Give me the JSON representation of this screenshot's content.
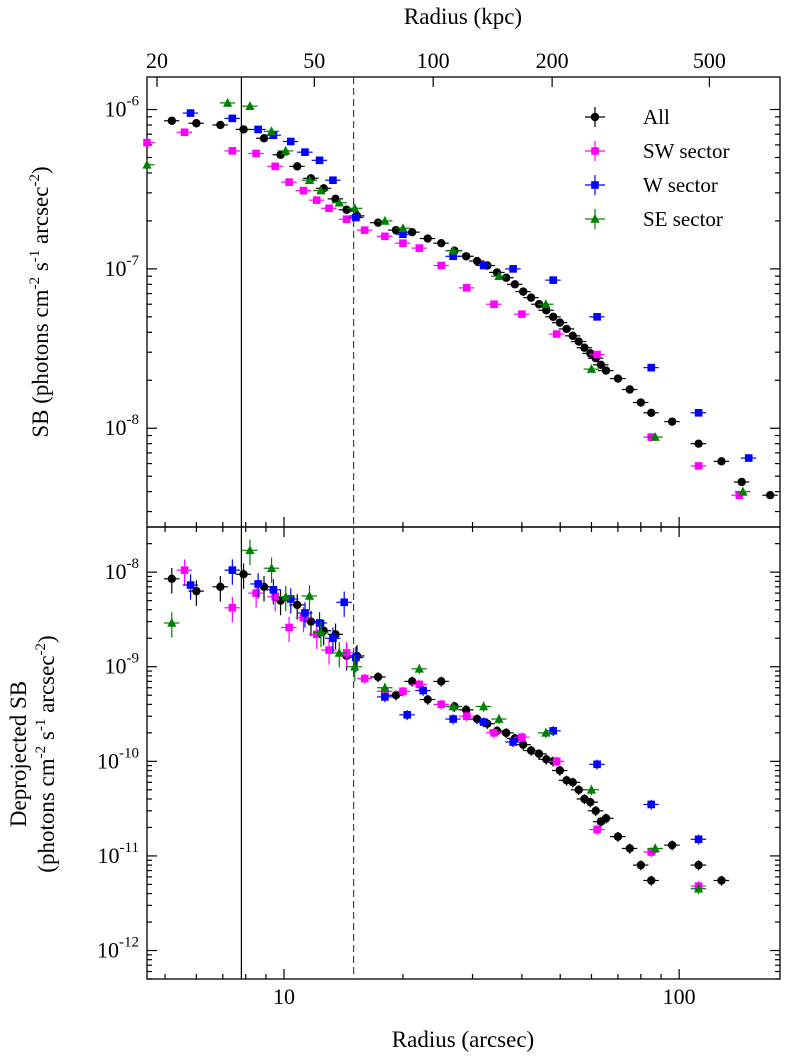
{
  "chart_data": [
    {
      "type": "scatter",
      "xscale": "log",
      "yscale": "log",
      "xlim": [
        4.5,
        180
      ],
      "ylim": [
        2.4e-09,
        1.6e-06
      ],
      "ylabel_lines": [
        "SB (photons cm",
        "-2",
        " s",
        "-1",
        " arcsec",
        "-2",
        ")"
      ],
      "top_axis_label": "Radius (kpc)",
      "top_axis_ticks": [
        "20",
        "50",
        "100",
        "200",
        "500"
      ],
      "top_axis_tick_arcsec": [
        4.77,
        11.93,
        23.85,
        47.7,
        119.3
      ],
      "vlines": [
        {
          "x": 7.8,
          "style": "solid"
        },
        {
          "x": 15.0,
          "style": "dashed"
        }
      ],
      "legend": {
        "placement": "top-right",
        "entries": [
          "All",
          "SW sector",
          "W sector",
          "SE sector"
        ]
      },
      "series": [
        {
          "name": "All",
          "color": "#000000",
          "marker": "circle",
          "x": [
            5.2,
            6.0,
            6.9,
            7.9,
            8.9,
            9.8,
            10.8,
            11.7,
            12.6,
            13.5,
            14.4,
            15.3,
            17.3,
            19.2,
            21.1,
            23.1,
            25.0,
            27.0,
            28.9,
            30.8,
            32.7,
            34.6,
            36.5,
            38.4,
            40.3,
            42.2,
            44.2,
            46.1,
            48.0,
            49.9,
            51.9,
            53.8,
            55.7,
            57.6,
            59.6,
            61.5,
            63.4,
            65.3,
            70.0,
            75.0,
            80.0,
            85.0,
            96.0,
            112.0,
            128.0,
            144.0,
            170.0
          ],
          "y": [
            8.5e-07,
            8.2e-07,
            8e-07,
            7.5e-07,
            6.6e-07,
            5.2e-07,
            4.4e-07,
            3.7e-07,
            3.2e-07,
            2.75e-07,
            2.35e-07,
            2.15e-07,
            1.95e-07,
            1.75e-07,
            1.7e-07,
            1.55e-07,
            1.45e-07,
            1.3e-07,
            1.2e-07,
            1.12e-07,
            1.05e-07,
            9.5e-08,
            8.8e-08,
            8e-08,
            7.2e-08,
            6.6e-08,
            6e-08,
            5.5e-08,
            5e-08,
            4.6e-08,
            4.2e-08,
            3.8e-08,
            3.5e-08,
            3.2e-08,
            2.95e-08,
            2.75e-08,
            2.5e-08,
            2.3e-08,
            2.05e-08,
            1.75e-08,
            1.45e-08,
            1.25e-08,
            1.1e-08,
            8e-09,
            6.2e-09,
            4.6e-09,
            3.8e-09
          ]
        },
        {
          "name": "SW sector",
          "color": "#ff00ff",
          "marker": "square",
          "x": [
            4.5,
            5.6,
            7.4,
            8.5,
            9.5,
            10.3,
            11.2,
            12.1,
            13.0,
            14.4,
            16.0,
            18.0,
            20.0,
            22.0,
            25.0,
            29.0,
            34.0,
            40.0,
            49.0,
            62.0,
            85.0,
            112.0,
            142.0
          ],
          "y": [
            6.2e-07,
            7.2e-07,
            5.5e-07,
            5.3e-07,
            4.4e-07,
            3.5e-07,
            3.1e-07,
            2.7e-07,
            2.4e-07,
            2.05e-07,
            1.75e-07,
            1.6e-07,
            1.45e-07,
            1.35e-07,
            1.05e-07,
            7.6e-08,
            6e-08,
            5.2e-08,
            3.9e-08,
            2.9e-08,
            8.8e-09,
            5.8e-09,
            3.8e-09
          ]
        },
        {
          "name": "W sector",
          "color": "#0000ff",
          "marker": "square",
          "x": [
            5.8,
            7.4,
            8.6,
            9.4,
            10.4,
            11.3,
            12.3,
            13.3,
            15.2,
            20.0,
            26.8,
            32.0,
            38.0,
            48.0,
            62.0,
            85.0,
            112.0,
            150.0
          ],
          "y": [
            9.5e-07,
            8.8e-07,
            7.5e-07,
            6.9e-07,
            6.3e-07,
            5.4e-07,
            4.8e-07,
            3.6e-07,
            2.1e-07,
            1.65e-07,
            1.2e-07,
            1.05e-07,
            1e-07,
            8.5e-08,
            5e-08,
            2.4e-08,
            1.25e-08,
            6.5e-09
          ]
        },
        {
          "name": "SE sector",
          "color": "#008000",
          "marker": "triangle",
          "x": [
            4.5,
            7.2,
            8.2,
            9.3,
            10.1,
            11.6,
            12.4,
            13.8,
            15.1,
            18.0,
            20.0,
            26.8,
            35.0,
            46.0,
            60.0,
            87.0,
            145.0
          ],
          "y": [
            4.5e-07,
            1.1e-06,
            1.05e-06,
            7.3e-07,
            5.5e-07,
            3.6e-07,
            3.1e-07,
            2.6e-07,
            2.4e-07,
            2e-07,
            1.8e-07,
            1.3e-07,
            9e-08,
            6e-08,
            2.35e-08,
            8.8e-09,
            4e-09
          ]
        }
      ]
    },
    {
      "type": "scatter",
      "xscale": "log",
      "yscale": "log",
      "xlim": [
        4.5,
        180
      ],
      "ylim": [
        5e-13,
        3e-08
      ],
      "xlabel": "Radius (arcsec)",
      "x_ticks": [
        "10",
        "100"
      ],
      "ylabel_top": "Deprojected SB",
      "ylabel_lines": [
        "(photons cm",
        "-2",
        " s",
        "-1",
        " arcsec",
        "-2",
        ")"
      ],
      "vlines": [
        {
          "x": 7.8,
          "style": "solid"
        },
        {
          "x": 15.0,
          "style": "dashed"
        }
      ],
      "series": [
        {
          "name": "All",
          "color": "#000000",
          "marker": "circle",
          "x": [
            5.2,
            6.0,
            6.9,
            7.9,
            8.9,
            9.8,
            10.8,
            11.7,
            12.6,
            13.5,
            14.4,
            15.3,
            17.3,
            19.2,
            21.1,
            23.1,
            25.0,
            27.0,
            28.9,
            30.8,
            32.7,
            34.6,
            36.5,
            38.4,
            40.3,
            42.2,
            44.2,
            46.1,
            48.0,
            49.9,
            51.9,
            53.8,
            55.7,
            57.6,
            59.6,
            61.5,
            63.4,
            65.3,
            70.0,
            75.0,
            80.0,
            85.0,
            96.0,
            112.0,
            128.0
          ],
          "y": [
            8.5e-09,
            6.3e-09,
            7e-09,
            9.5e-09,
            7e-09,
            5e-09,
            4.5e-09,
            3e-09,
            2.4e-09,
            2.2e-09,
            1.3e-09,
            1.3e-09,
            7.8e-10,
            5e-10,
            7e-10,
            4.5e-10,
            7e-10,
            3.8e-10,
            3.5e-10,
            2.8e-10,
            2.5e-10,
            2.1e-10,
            2e-10,
            1.75e-10,
            1.5e-10,
            1.3e-10,
            1.2e-10,
            1.05e-10,
            1e-10,
            8e-11,
            6.3e-11,
            6e-11,
            5e-11,
            4e-11,
            3.7e-11,
            3e-11,
            2.3e-11,
            2.5e-11,
            1.6e-11,
            1.2e-11,
            8e-12,
            5.5e-12,
            1.3e-11,
            8e-12,
            5.5e-12
          ]
        },
        {
          "name": "SW sector",
          "color": "#ff00ff",
          "marker": "square",
          "x": [
            5.6,
            7.4,
            8.5,
            9.5,
            10.3,
            11.2,
            12.1,
            13.0,
            14.4,
            16.0,
            18.0,
            20.0,
            22.0,
            25.0,
            29.0,
            34.0,
            40.0,
            49.0,
            62.0,
            85.0,
            112.0
          ],
          "y": [
            1.05e-08,
            4.2e-09,
            6e-09,
            5.5e-09,
            2.6e-09,
            3.3e-09,
            2.2e-09,
            1.5e-09,
            1.4e-09,
            7.5e-10,
            5.5e-10,
            5.5e-10,
            6.5e-10,
            4e-10,
            3e-10,
            2e-10,
            1.8e-10,
            1e-10,
            1.9e-11,
            1.1e-11,
            4.8e-12
          ]
        },
        {
          "name": "W sector",
          "color": "#0000ff",
          "marker": "square",
          "x": [
            5.8,
            7.4,
            8.6,
            9.4,
            10.4,
            11.3,
            12.3,
            13.3,
            14.2,
            15.2,
            18.0,
            20.5,
            22.5,
            26.8,
            32.0,
            38.0,
            48.0,
            62.0,
            85.0,
            112.0
          ],
          "y": [
            7.3e-09,
            1.05e-08,
            7.5e-09,
            6.5e-09,
            5.2e-09,
            3.7e-09,
            2.9e-09,
            2e-09,
            4.8e-09,
            1.25e-09,
            4.8e-10,
            3.1e-10,
            5.6e-10,
            2.8e-10,
            2.6e-10,
            1.6e-10,
            2.1e-10,
            9.3e-11,
            3.5e-11,
            1.5e-11
          ]
        },
        {
          "name": "SE sector",
          "color": "#008000",
          "marker": "triangle",
          "x": [
            5.2,
            8.2,
            9.3,
            10.1,
            11.6,
            12.4,
            13.8,
            15.1,
            18.0,
            22.0,
            26.8,
            32.0,
            35.0,
            46.0,
            60.0,
            87.0,
            112.0
          ],
          "y": [
            2.9e-09,
            1.7e-08,
            1.1e-08,
            5.5e-09,
            5.6e-09,
            2.3e-09,
            1.4e-09,
            1e-09,
            6e-10,
            9.5e-10,
            3.8e-10,
            3.8e-10,
            2.8e-10,
            2e-10,
            5e-11,
            1.2e-11,
            4.5e-12
          ]
        }
      ]
    }
  ]
}
